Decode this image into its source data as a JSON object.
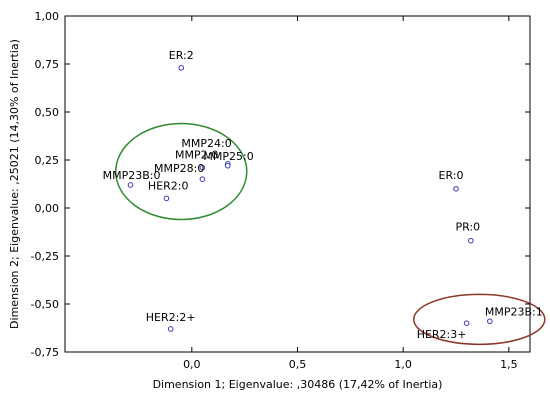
{
  "chart_data": {
    "type": "scatter",
    "title": "",
    "xlabel": "Dimension 1; Eigenvalue: ,30486 (17,42% of Inertia)",
    "ylabel": "Dimension 2; Eigenvalue: ,25021 (14,30% of Inertia)",
    "xlim": [
      -0.6,
      1.6
    ],
    "ylim": [
      -0.75,
      1.0
    ],
    "x_ticks": [
      0,
      0.5,
      1.0,
      1.5
    ],
    "x_tick_labels": [
      "0,0",
      "0,5",
      "1,0",
      "1,5"
    ],
    "y_ticks": [
      1.0,
      0.75,
      0.5,
      0.25,
      0.0,
      -0.25,
      -0.5,
      -0.75
    ],
    "y_tick_labels": [
      "1,00",
      "0,75",
      "0,50",
      "0,25",
      "0,00",
      "-0,25",
      "-0,50",
      "-0,75"
    ],
    "grid": false,
    "points": [
      {
        "label": "ER:2",
        "x": -0.05,
        "y": 0.73,
        "anchor": "middle",
        "dx": 0,
        "dy": -9
      },
      {
        "label": "MMP24:0",
        "x": 0.17,
        "y": 0.23,
        "anchor": "end",
        "dx": 4,
        "dy": -17
      },
      {
        "label": "MMP25:0",
        "x": 0.17,
        "y": 0.22,
        "anchor": "end",
        "dx": 26,
        "dy": -6
      },
      {
        "label": "MMP2:0",
        "x": 0.05,
        "y": 0.21,
        "anchor": "end",
        "dx": 16,
        "dy": -9
      },
      {
        "label": "MMP28:0",
        "x": 0.05,
        "y": 0.15,
        "anchor": "end",
        "dx": 2,
        "dy": -7
      },
      {
        "label": "MMP23B:0",
        "x": -0.29,
        "y": 0.12,
        "anchor": "end",
        "dx": 30,
        "dy": -6
      },
      {
        "label": "HER2:0",
        "x": -0.12,
        "y": 0.05,
        "anchor": "end",
        "dx": 22,
        "dy": -9
      },
      {
        "label": "ER:0",
        "x": 1.25,
        "y": 0.1,
        "anchor": "middle",
        "dx": -5,
        "dy": -10
      },
      {
        "label": "PR:0",
        "x": 1.32,
        "y": -0.17,
        "anchor": "middle",
        "dx": -3,
        "dy": -10
      },
      {
        "label": "MMP23B:1",
        "x": 1.41,
        "y": -0.59,
        "anchor": "middle",
        "dx": 24,
        "dy": -6
      },
      {
        "label": "HER2:3+",
        "x": 1.3,
        "y": -0.6,
        "anchor": "middle",
        "dx": -25,
        "dy": 15
      },
      {
        "label": "HER2:2+",
        "x": -0.1,
        "y": -0.63,
        "anchor": "middle",
        "dx": 0,
        "dy": -8
      }
    ],
    "ellipses": [
      {
        "name": "green-cluster",
        "cx": -0.05,
        "cy": 0.19,
        "rx": 0.31,
        "ry": 0.25,
        "color": "#2e8b2e"
      },
      {
        "name": "red-cluster",
        "cx": 1.36,
        "cy": -0.58,
        "rx": 0.31,
        "ry": 0.13,
        "color": "#8b3a2a"
      }
    ],
    "point_color": "#3b3bb3"
  }
}
